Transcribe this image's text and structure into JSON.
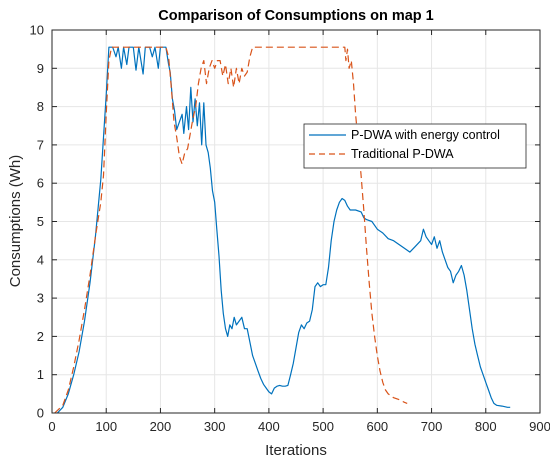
{
  "chart_data": {
    "type": "line",
    "title": "Comparison of Consumptions on map 1",
    "xlabel": "Iterations",
    "ylabel": "Consumptions (Wh)",
    "xlim": [
      0,
      900
    ],
    "ylim": [
      0,
      10
    ],
    "xticks": [
      0,
      100,
      200,
      300,
      400,
      500,
      600,
      700,
      800,
      900
    ],
    "yticks": [
      0,
      1,
      2,
      3,
      4,
      5,
      6,
      7,
      8,
      9,
      10
    ],
    "grid": true,
    "legend_position": "right",
    "series": [
      {
        "name": "P-DWA with energy control",
        "color": "#0072BD",
        "style": "solid",
        "points": [
          [
            10,
            0
          ],
          [
            20,
            0.15
          ],
          [
            30,
            0.5
          ],
          [
            40,
            1.0
          ],
          [
            50,
            1.6
          ],
          [
            60,
            2.4
          ],
          [
            70,
            3.4
          ],
          [
            80,
            4.6
          ],
          [
            90,
            6.1
          ],
          [
            100,
            8.3
          ],
          [
            105,
            9.55
          ],
          [
            112,
            9.55
          ],
          [
            118,
            9.3
          ],
          [
            122,
            9.55
          ],
          [
            128,
            9.0
          ],
          [
            132,
            9.55
          ],
          [
            138,
            9.1
          ],
          [
            142,
            9.55
          ],
          [
            150,
            9.55
          ],
          [
            155,
            8.95
          ],
          [
            160,
            9.55
          ],
          [
            168,
            8.85
          ],
          [
            172,
            9.55
          ],
          [
            180,
            9.55
          ],
          [
            185,
            9.3
          ],
          [
            190,
            9.55
          ],
          [
            196,
            9.0
          ],
          [
            200,
            9.55
          ],
          [
            210,
            9.55
          ],
          [
            215,
            9.1
          ],
          [
            218,
            8.9
          ],
          [
            222,
            8.2
          ],
          [
            226,
            7.9
          ],
          [
            230,
            7.4
          ],
          [
            235,
            7.6
          ],
          [
            240,
            7.8
          ],
          [
            243,
            7.3
          ],
          [
            248,
            8.0
          ],
          [
            252,
            7.4
          ],
          [
            256,
            8.5
          ],
          [
            260,
            7.6
          ],
          [
            264,
            8.2
          ],
          [
            268,
            7.5
          ],
          [
            272,
            8.1
          ],
          [
            276,
            7.0
          ],
          [
            280,
            8.1
          ],
          [
            284,
            7.0
          ],
          [
            288,
            6.8
          ],
          [
            292,
            6.4
          ],
          [
            296,
            5.8
          ],
          [
            300,
            5.5
          ],
          [
            304,
            4.8
          ],
          [
            308,
            4.1
          ],
          [
            312,
            3.2
          ],
          [
            316,
            2.6
          ],
          [
            320,
            2.2
          ],
          [
            324,
            2.0
          ],
          [
            328,
            2.3
          ],
          [
            332,
            2.2
          ],
          [
            336,
            2.5
          ],
          [
            340,
            2.3
          ],
          [
            345,
            2.4
          ],
          [
            350,
            2.5
          ],
          [
            355,
            2.2
          ],
          [
            360,
            2.2
          ],
          [
            365,
            1.85
          ],
          [
            370,
            1.5
          ],
          [
            375,
            1.3
          ],
          [
            380,
            1.1
          ],
          [
            385,
            0.9
          ],
          [
            390,
            0.75
          ],
          [
            395,
            0.65
          ],
          [
            400,
            0.55
          ],
          [
            405,
            0.5
          ],
          [
            410,
            0.65
          ],
          [
            415,
            0.7
          ],
          [
            420,
            0.72
          ],
          [
            425,
            0.7
          ],
          [
            430,
            0.7
          ],
          [
            435,
            0.72
          ],
          [
            440,
            1.0
          ],
          [
            445,
            1.3
          ],
          [
            450,
            1.7
          ],
          [
            455,
            2.1
          ],
          [
            460,
            2.3
          ],
          [
            465,
            2.2
          ],
          [
            470,
            2.35
          ],
          [
            475,
            2.4
          ],
          [
            480,
            2.7
          ],
          [
            485,
            3.3
          ],
          [
            490,
            3.4
          ],
          [
            495,
            3.3
          ],
          [
            500,
            3.35
          ],
          [
            505,
            3.35
          ],
          [
            510,
            3.8
          ],
          [
            515,
            4.5
          ],
          [
            520,
            5.0
          ],
          [
            525,
            5.3
          ],
          [
            530,
            5.5
          ],
          [
            535,
            5.6
          ],
          [
            540,
            5.55
          ],
          [
            545,
            5.4
          ],
          [
            550,
            5.3
          ],
          [
            560,
            5.3
          ],
          [
            570,
            5.25
          ],
          [
            575,
            5.1
          ],
          [
            580,
            5.05
          ],
          [
            590,
            5.0
          ],
          [
            600,
            4.8
          ],
          [
            610,
            4.7
          ],
          [
            620,
            4.55
          ],
          [
            630,
            4.5
          ],
          [
            640,
            4.4
          ],
          [
            650,
            4.3
          ],
          [
            660,
            4.2
          ],
          [
            670,
            4.35
          ],
          [
            680,
            4.5
          ],
          [
            685,
            4.8
          ],
          [
            690,
            4.6
          ],
          [
            695,
            4.5
          ],
          [
            700,
            4.4
          ],
          [
            705,
            4.6
          ],
          [
            710,
            4.3
          ],
          [
            715,
            4.5
          ],
          [
            720,
            4.2
          ],
          [
            725,
            4.0
          ],
          [
            730,
            3.8
          ],
          [
            735,
            3.7
          ],
          [
            740,
            3.4
          ],
          [
            745,
            3.6
          ],
          [
            750,
            3.7
          ],
          [
            755,
            3.85
          ],
          [
            760,
            3.6
          ],
          [
            765,
            3.2
          ],
          [
            770,
            2.7
          ],
          [
            775,
            2.2
          ],
          [
            780,
            1.8
          ],
          [
            785,
            1.5
          ],
          [
            790,
            1.2
          ],
          [
            795,
            1.0
          ],
          [
            800,
            0.8
          ],
          [
            805,
            0.6
          ],
          [
            810,
            0.4
          ],
          [
            815,
            0.25
          ],
          [
            820,
            0.2
          ],
          [
            830,
            0.18
          ],
          [
            840,
            0.15
          ],
          [
            845,
            0.15
          ]
        ]
      },
      {
        "name": "Traditional P-DWA",
        "color": "#D95319",
        "style": "dashed",
        "points": [
          [
            5,
            0
          ],
          [
            20,
            0.2
          ],
          [
            30,
            0.6
          ],
          [
            40,
            1.2
          ],
          [
            50,
            1.9
          ],
          [
            60,
            2.7
          ],
          [
            70,
            3.6
          ],
          [
            80,
            4.6
          ],
          [
            90,
            5.5
          ],
          [
            95,
            6.2
          ],
          [
            100,
            7.8
          ],
          [
            105,
            9.2
          ],
          [
            110,
            9.55
          ],
          [
            160,
            9.55
          ],
          [
            210,
            9.55
          ],
          [
            215,
            9.3
          ],
          [
            220,
            8.5
          ],
          [
            225,
            7.6
          ],
          [
            230,
            7.2
          ],
          [
            235,
            6.7
          ],
          [
            240,
            6.5
          ],
          [
            245,
            6.8
          ],
          [
            250,
            6.9
          ],
          [
            255,
            7.3
          ],
          [
            260,
            7.7
          ],
          [
            265,
            8.0
          ],
          [
            270,
            8.6
          ],
          [
            275,
            9.0
          ],
          [
            280,
            9.2
          ],
          [
            285,
            8.6
          ],
          [
            290,
            9.0
          ],
          [
            295,
            9.2
          ],
          [
            300,
            9.0
          ],
          [
            305,
            9.2
          ],
          [
            310,
            9.2
          ],
          [
            315,
            8.8
          ],
          [
            320,
            9.1
          ],
          [
            325,
            8.6
          ],
          [
            330,
            9.0
          ],
          [
            335,
            8.5
          ],
          [
            340,
            9.0
          ],
          [
            345,
            8.6
          ],
          [
            350,
            9.0
          ],
          [
            355,
            8.8
          ],
          [
            360,
            8.9
          ],
          [
            365,
            9.3
          ],
          [
            370,
            9.55
          ],
          [
            400,
            9.55
          ],
          [
            450,
            9.55
          ],
          [
            500,
            9.55
          ],
          [
            540,
            9.55
          ],
          [
            542,
            9.2
          ],
          [
            545,
            9.5
          ],
          [
            548,
            9.0
          ],
          [
            552,
            9.2
          ],
          [
            556,
            8.6
          ],
          [
            560,
            7.8
          ],
          [
            565,
            7.0
          ],
          [
            570,
            6.2
          ],
          [
            575,
            5.3
          ],
          [
            580,
            4.3
          ],
          [
            585,
            3.4
          ],
          [
            590,
            2.6
          ],
          [
            595,
            2.0
          ],
          [
            600,
            1.5
          ],
          [
            605,
            1.1
          ],
          [
            610,
            0.8
          ],
          [
            615,
            0.6
          ],
          [
            620,
            0.5
          ],
          [
            625,
            0.45
          ],
          [
            630,
            0.4
          ],
          [
            640,
            0.35
          ],
          [
            650,
            0.28
          ],
          [
            655,
            0.25
          ]
        ]
      }
    ]
  }
}
